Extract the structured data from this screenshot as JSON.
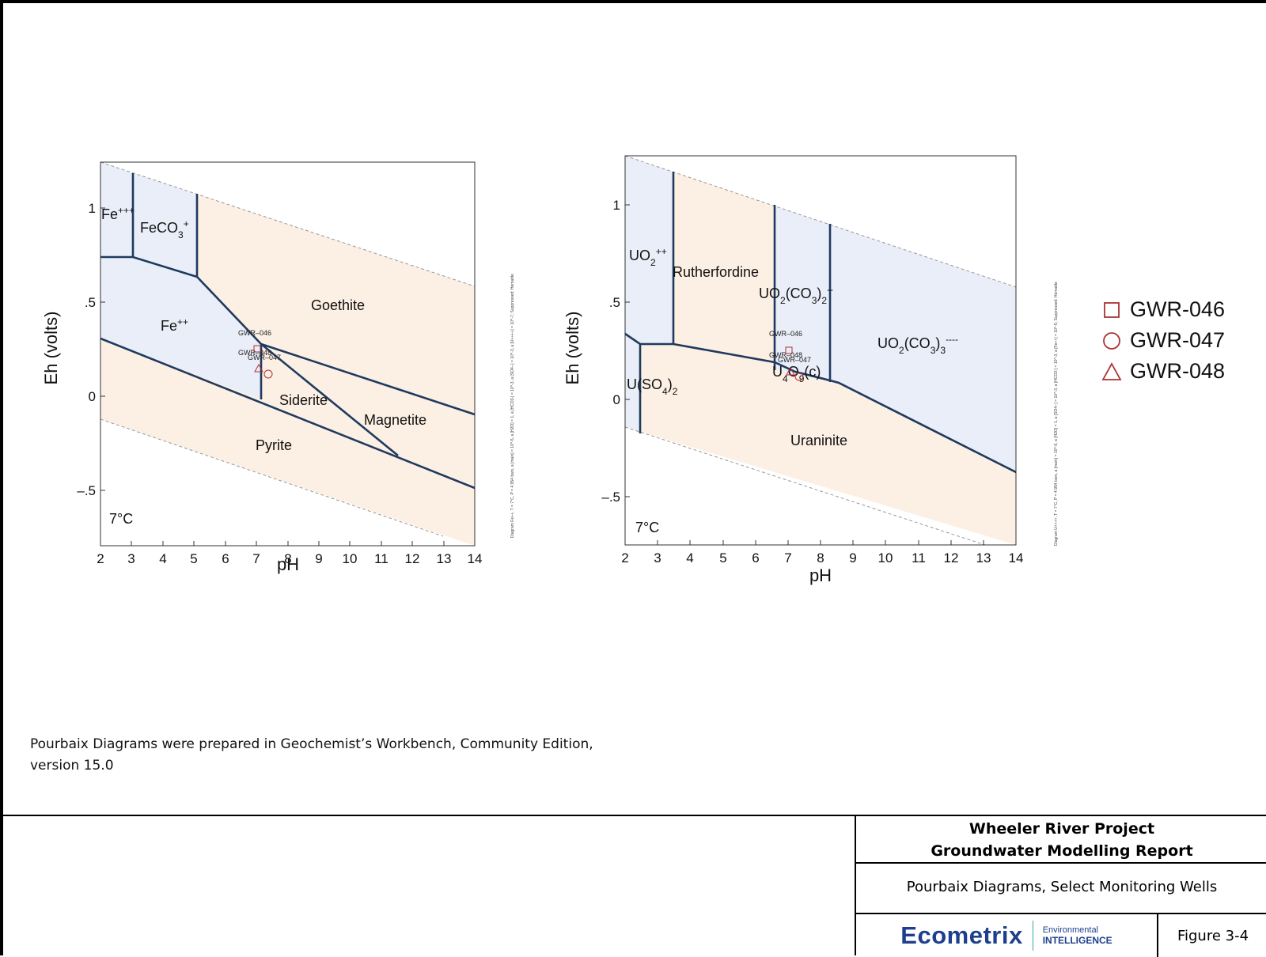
{
  "diagrams": [
    {
      "id": "iron",
      "xlabel": "pH",
      "ylabel": "Eh (volts)",
      "temperature": "7°C",
      "x_ticks": [
        "2",
        "3",
        "4",
        "5",
        "6",
        "7",
        "8",
        "9",
        "10",
        "11",
        "12",
        "13",
        "14"
      ],
      "y_ticks": [
        "1",
        ".5",
        "0",
        "–.5"
      ],
      "regions": [
        "Fe+++",
        "FeCO3+",
        "Fe++",
        "Goethite",
        "Siderite",
        "Magnetite",
        "Pyrite"
      ],
      "wells": [
        "GWR–046",
        "GWR–048",
        "GWR–047"
      ],
      "side_note": "Diagram Fe++, T = 7°C, P = 4.954 bars, a [main] = 10^-5, a [H2O] = 1, a [HCO3-] = 10^-3, a [SO4--] = 10^-3, a [U++++] = 10^-7; Suppressed: Hematite"
    },
    {
      "id": "uranium",
      "xlabel": "pH",
      "ylabel": "Eh (volts)",
      "temperature": "7°C",
      "x_ticks": [
        "2",
        "3",
        "4",
        "5",
        "6",
        "7",
        "8",
        "9",
        "10",
        "11",
        "12",
        "13",
        "14"
      ],
      "y_ticks": [
        "1",
        ".5",
        "0",
        "–.5"
      ],
      "regions": [
        "UO2++",
        "Rutherfordine",
        "UO2(CO3)2--",
        "UO2(CO3)3----",
        "U(SO4)2",
        "U4O9(c)",
        "Uraninite"
      ],
      "wells": [
        "GWR–046",
        "GWR–048",
        "GWR–047"
      ],
      "side_note": "Diagram U++++, T = 7°C, P = 4.954 bars, a [main] = 10^-6, a [H2O] = 1, a [SO4--] = 10^-3, a [HCO3-] = 10^-3, a [Fe++] = 10^-5; Suppressed: Hematite"
    }
  ],
  "legend": [
    {
      "label": "GWR-046",
      "symbol": "square"
    },
    {
      "label": "GWR-047",
      "symbol": "circle"
    },
    {
      "label": "GWR-048",
      "symbol": "triangle"
    }
  ],
  "colors": {
    "blue_region": "#e9eef8",
    "peach_region": "#fcefe3",
    "boundary": "#1f3a5f",
    "marker": "#b03030"
  },
  "note": "Pourbaix Diagrams were prepared in Geochemist’s Workbench, Community Edition, version 15.0",
  "title_block": {
    "project_line1": "Wheeler River Project",
    "project_line2": "Groundwater Modelling Report",
    "description": "Pourbaix Diagrams, Select Monitoring Wells",
    "logo_main": "Ecometrix",
    "logo_sub1": "Environmental",
    "logo_sub2": "INTELLIGENCE",
    "figure": "Figure 3-4"
  }
}
